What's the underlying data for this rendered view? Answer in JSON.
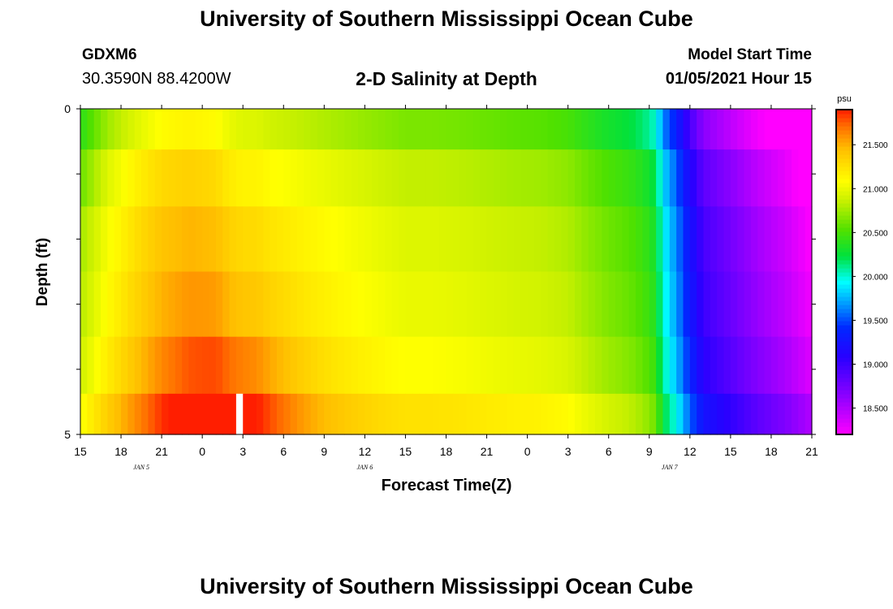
{
  "header": {
    "title": "University of Southern Mississippi Ocean Cube",
    "footer_title": "University of Southern Mississippi Ocean Cube",
    "station_id": "GDXM6",
    "station_location": "30.3590N 88.4200W",
    "plot_title": "2-D Salinity at Depth",
    "model_start_label": "Model Start Time",
    "model_start_value": "01/05/2021 Hour 15"
  },
  "chart_data": {
    "type": "heatmap",
    "title": "2-D Salinity at Depth",
    "xlabel": "Forecast Time(Z)",
    "ylabel": "Depth (ft)",
    "x_tick_labels": [
      "15",
      "18",
      "21",
      "0",
      "3",
      "6",
      "9",
      "12",
      "15",
      "18",
      "21",
      "0",
      "3",
      "6",
      "9",
      "12",
      "15",
      "18",
      "21"
    ],
    "x_day_labels": [
      {
        "label": "JAN 5",
        "tick_index": 1.5
      },
      {
        "label": "JAN 6",
        "tick_index": 7
      },
      {
        "label": "JAN 7",
        "tick_index": 14.5
      }
    ],
    "x_hours_range": [
      0,
      54
    ],
    "y_tick_labels": [
      "0",
      "5"
    ],
    "ylim": [
      0,
      5
    ],
    "colorbar": {
      "unit": "psu",
      "min": 18.2,
      "max": 21.9,
      "tick_values": [
        18.5,
        19.0,
        19.5,
        20.0,
        20.5,
        21.0,
        21.5
      ],
      "tick_labels": [
        "18.500",
        "19.000",
        "19.500",
        "20.000",
        "20.500",
        "21.000",
        "21.500"
      ]
    },
    "depth_levels_ft": [
      0.25,
      1.0,
      2.0,
      3.0,
      4.0,
      4.75
    ],
    "profile_hours": [
      0,
      1,
      2,
      3,
      4,
      6,
      8,
      10,
      11,
      12,
      13,
      14,
      16,
      18,
      20,
      22,
      24,
      26,
      28,
      30,
      32,
      34,
      36,
      37,
      38,
      39,
      40,
      41,
      42,
      42.5,
      43,
      44,
      45,
      46,
      48,
      50,
      52,
      54
    ],
    "profile_salinity_psu": [
      20.9,
      21.0,
      21.1,
      21.2,
      21.3,
      21.45,
      21.5,
      21.45,
      21.35,
      21.3,
      21.3,
      21.25,
      21.2,
      21.15,
      21.1,
      21.05,
      21.0,
      21.0,
      20.98,
      20.95,
      20.92,
      20.9,
      20.85,
      20.78,
      20.72,
      20.66,
      20.62,
      20.56,
      20.45,
      20.35,
      20.0,
      19.7,
      19.3,
      19.0,
      18.8,
      18.6,
      18.45,
      18.25
    ],
    "surface_adjustment_psu": [
      -0.35,
      -0.15,
      -0.05,
      0.0,
      0.08,
      0.25
    ],
    "peak_hour": 11,
    "peak_extra_psu": [
      0.0,
      0.0,
      0.05,
      0.12,
      0.28,
      0.42
    ],
    "missing_cell": {
      "hour": 11.5,
      "depth_ft": 4.75
    }
  }
}
